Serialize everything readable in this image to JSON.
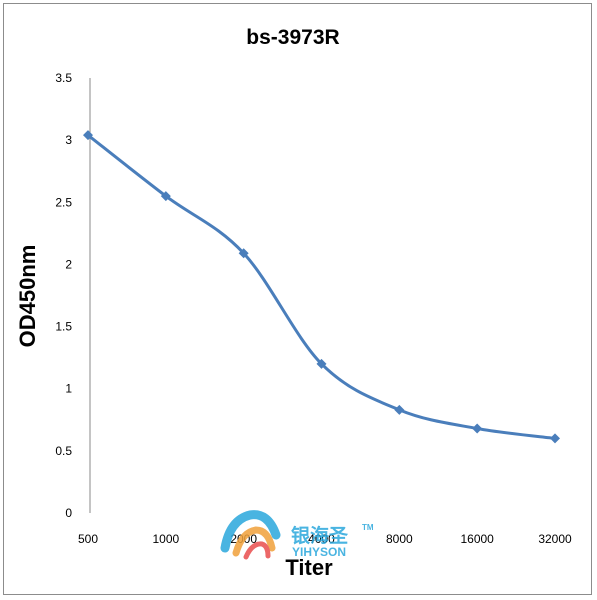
{
  "chart_data": {
    "type": "line",
    "title": "bs-3973R",
    "xlabel": "Titer",
    "ylabel": "OD450nm",
    "categories": [
      "500",
      "1000",
      "2000",
      "4000",
      "8000",
      "16000",
      "32000"
    ],
    "series": [
      {
        "values": [
          3.04,
          2.55,
          2.09,
          1.2,
          0.83,
          0.68,
          0.6
        ],
        "color": "#4a7ebb",
        "marker": "diamond"
      }
    ],
    "ylim": [
      0,
      3.5
    ],
    "yticks": [
      "0",
      "0.5",
      "1",
      "1.5",
      "2",
      "2.5",
      "3",
      "3.5"
    ],
    "grid": false,
    "legend": "none",
    "smooth": true
  },
  "watermark": {
    "brand_cn": "银海圣",
    "brand_tm": "TM",
    "brand_en": "YIHYSON",
    "colors": [
      "#2aa7dc",
      "#f0a13a",
      "#e94d4d"
    ]
  }
}
